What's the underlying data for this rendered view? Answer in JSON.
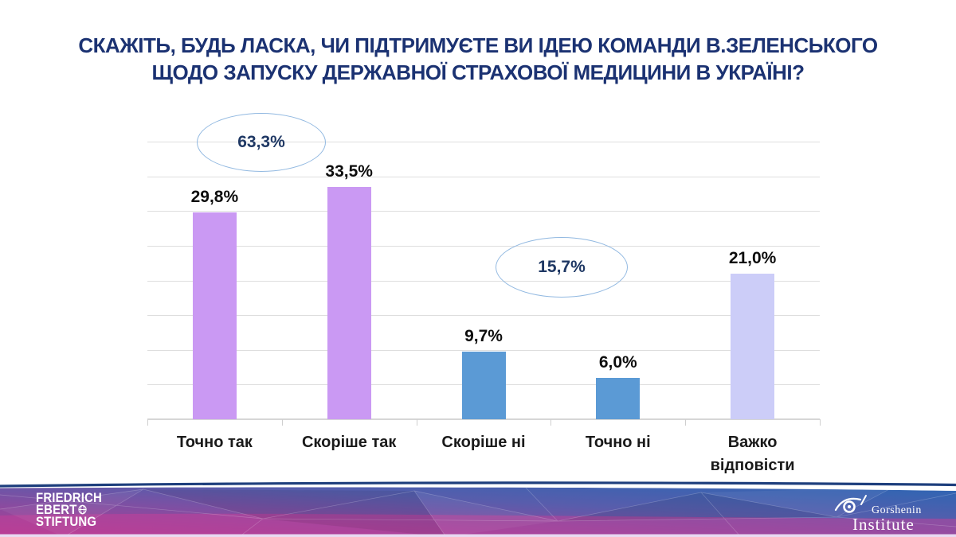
{
  "title": {
    "line1": "СКАЖІТЬ, БУДЬ ЛАСКА, ЧИ ПІДТРИМУЄТЕ ВИ ІДЕЮ КОМАНДИ В.ЗЕЛЕНСЬКОГО",
    "line2": "ЩОДО ЗАПУСКУ ДЕРЖАВНОЇ СТРАХОВОЇ МЕДИЦИНИ В УКРАЇНІ?"
  },
  "chart_data": {
    "type": "bar",
    "categories": [
      "Точно так",
      "Скоріше так",
      "Скоріше ні",
      "Точно ні",
      "Важко відповісти"
    ],
    "values": [
      29.8,
      33.5,
      9.7,
      6.0,
      21.0
    ],
    "value_labels": [
      "29,8%",
      "33,5%",
      "9,7%",
      "6,0%",
      "21,0%"
    ],
    "bar_colors": [
      "#ca99f3",
      "#ca99f3",
      "#5b9ad5",
      "#5b9ad5",
      "#cccdf8"
    ],
    "ylim": [
      0,
      40
    ],
    "gridline_step": 5,
    "grid": true,
    "legend": null,
    "xlabel": "",
    "ylabel": "",
    "annotations": [
      {
        "text": "63,3%",
        "spans_categories": [
          "Точно так",
          "Скоріше так"
        ]
      },
      {
        "text": "15,7%",
        "spans_categories": [
          "Скоріше ні",
          "Точно ні"
        ]
      }
    ]
  },
  "colors": {
    "title_text": "#1b3272",
    "annotation_stroke": "#92b9e1",
    "annotation_text": "#1f3864",
    "gridline": "#dedede"
  },
  "footer": {
    "fes_logo": {
      "line1": "FRIEDRICH",
      "line2": "EBERT",
      "line3": "STIFTUNG"
    },
    "gorshenin_logo": {
      "name": "Gorshenin",
      "subtitle": "Institute"
    }
  }
}
